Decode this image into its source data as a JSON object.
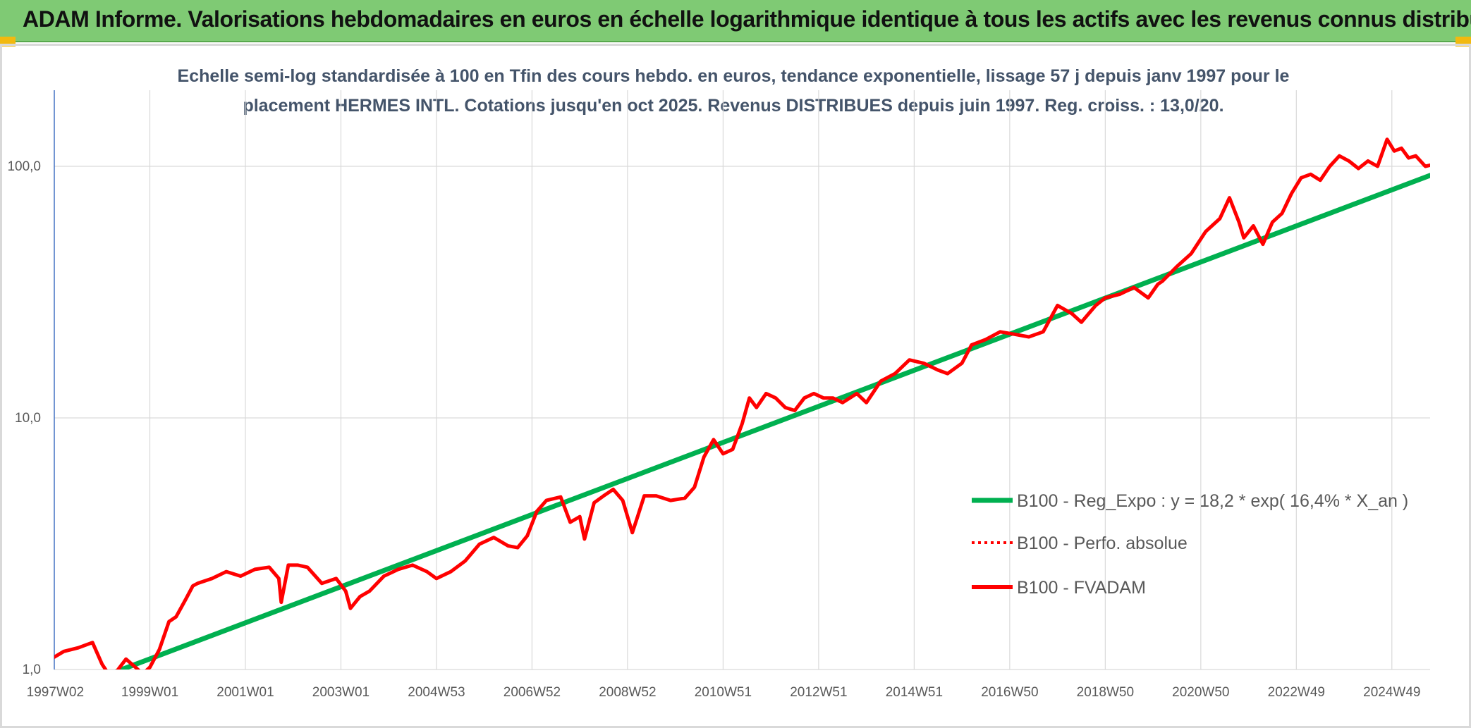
{
  "header": {
    "title": "ADAM Informe. Valorisations hebdomadaires en euros en échelle logarithmique identique à tous les actifs avec les revenus connus distribués"
  },
  "colors": {
    "header_bg": "#7fca74",
    "trend": "#00b050",
    "series": "#ff0000",
    "grid": "#d9d9d9",
    "subtitle": "#44546a"
  },
  "chart_data": {
    "type": "line",
    "title_lines": [
      "Echelle semi-log standardisée à 100 en Tfin des cours hebdo. en euros, tendance exponentielle, lissage 57 j depuis janv 1997 pour le",
      "placement HERMES INTL. Cotations jusqu'en oct 2025. Revenus DISTRIBUES depuis juin 1997. Reg. croiss. : 13,0/20."
    ],
    "y_scale": "log",
    "ylim": [
      1,
      190
    ],
    "xlim": [
      1997.0,
      2025.8
    ],
    "y_ticks": [
      {
        "value": 1,
        "label": "1,0"
      },
      {
        "value": 10,
        "label": "10,0"
      },
      {
        "value": 100,
        "label": "100,0"
      }
    ],
    "x_ticks": [
      {
        "value": 1997.02,
        "label": "1997W02"
      },
      {
        "value": 1999.0,
        "label": "1999W01"
      },
      {
        "value": 2001.0,
        "label": "2001W01"
      },
      {
        "value": 2003.0,
        "label": "2003W01"
      },
      {
        "value": 2005.0,
        "label": "2004W53"
      },
      {
        "value": 2007.0,
        "label": "2006W52"
      },
      {
        "value": 2009.0,
        "label": "2008W52"
      },
      {
        "value": 2011.0,
        "label": "2010W51"
      },
      {
        "value": 2013.0,
        "label": "2012W51"
      },
      {
        "value": 2015.0,
        "label": "2014W51"
      },
      {
        "value": 2017.0,
        "label": "2016W50"
      },
      {
        "value": 2019.0,
        "label": "2018W50"
      },
      {
        "value": 2021.0,
        "label": "2020W50"
      },
      {
        "value": 2023.0,
        "label": "2022W49"
      },
      {
        "value": 2025.0,
        "label": "2024W49"
      }
    ],
    "legend": {
      "position": "right",
      "entries": [
        {
          "label": "B100 - Reg_Expo : y = 18,2 * exp( 16,4% *  X_an )",
          "style": "solid-green"
        },
        {
          "label": "B100 - Perfo. absolue",
          "style": "dotted-red"
        },
        {
          "label": "B100 - FVADAM",
          "style": "solid-red"
        }
      ]
    },
    "series": [
      {
        "name": "B100 - Reg_Expo : y = 18,2 * exp( 16,4% *  X_an )",
        "kind": "trend",
        "x": [
          1998.1,
          2025.8
        ],
        "y": [
          0.95,
          92
        ]
      },
      {
        "name": "B100 - FVADAM",
        "kind": "main",
        "x": [
          1997.0,
          1997.2,
          1997.5,
          1997.8,
          1998.0,
          1998.15,
          1998.3,
          1998.5,
          1998.7,
          1998.85,
          1999.0,
          1999.2,
          1999.4,
          1999.55,
          1999.75,
          1999.9,
          2000.0,
          2000.3,
          2000.6,
          2000.9,
          2001.2,
          2001.5,
          2001.7,
          2001.75,
          2001.9,
          2002.1,
          2002.3,
          2002.6,
          2002.9,
          2003.1,
          2003.2,
          2003.4,
          2003.6,
          2003.9,
          2004.2,
          2004.5,
          2004.8,
          2005.0,
          2005.3,
          2005.6,
          2005.9,
          2006.2,
          2006.5,
          2006.7,
          2006.9,
          2007.1,
          2007.3,
          2007.6,
          2007.8,
          2008.0,
          2008.1,
          2008.3,
          2008.5,
          2008.7,
          2008.9,
          2009.1,
          2009.2,
          2009.35,
          2009.6,
          2009.9,
          2010.2,
          2010.4,
          2010.6,
          2010.8,
          2011.0,
          2011.2,
          2011.4,
          2011.55,
          2011.7,
          2011.9,
          2012.1,
          2012.3,
          2012.5,
          2012.7,
          2012.9,
          2013.1,
          2013.3,
          2013.5,
          2013.8,
          2014.0,
          2014.3,
          2014.6,
          2014.9,
          2015.2,
          2015.5,
          2015.7,
          2016.0,
          2016.2,
          2016.5,
          2016.8,
          2017.1,
          2017.4,
          2017.7,
          2018.0,
          2018.3,
          2018.5,
          2018.8,
          2019.0,
          2019.3,
          2019.6,
          2019.9,
          2020.1,
          2020.2,
          2020.5,
          2020.8,
          2021.1,
          2021.4,
          2021.6,
          2021.8,
          2021.9,
          2022.1,
          2022.3,
          2022.5,
          2022.7,
          2022.9,
          2023.1,
          2023.3,
          2023.5,
          2023.7,
          2023.9,
          2024.1,
          2024.3,
          2024.5,
          2024.7,
          2024.9,
          2025.05,
          2025.2,
          2025.35,
          2025.5,
          2025.7,
          2025.8
        ],
        "y": [
          1.12,
          1.18,
          1.22,
          1.28,
          1.05,
          0.95,
          0.98,
          1.1,
          1.02,
          0.96,
          1.02,
          1.2,
          1.55,
          1.62,
          1.9,
          2.15,
          2.2,
          2.3,
          2.45,
          2.35,
          2.5,
          2.55,
          2.3,
          1.85,
          2.6,
          2.6,
          2.55,
          2.2,
          2.3,
          2.05,
          1.75,
          1.95,
          2.05,
          2.35,
          2.5,
          2.6,
          2.45,
          2.3,
          2.45,
          2.7,
          3.15,
          3.35,
          3.1,
          3.05,
          3.4,
          4.25,
          4.7,
          4.85,
          3.85,
          4.05,
          3.3,
          4.6,
          4.9,
          5.2,
          4.7,
          3.5,
          4.0,
          4.9,
          4.9,
          4.7,
          4.8,
          5.3,
          7.0,
          8.2,
          7.2,
          7.5,
          9.5,
          12.0,
          11.0,
          12.5,
          12.0,
          11.0,
          10.7,
          12.0,
          12.5,
          12.0,
          12.0,
          11.5,
          12.5,
          11.5,
          14.0,
          15.0,
          17.0,
          16.5,
          15.5,
          15.0,
          16.5,
          19.5,
          20.5,
          22.0,
          21.5,
          21.0,
          22.0,
          28.0,
          26.0,
          24.0,
          28.0,
          30.0,
          31.0,
          33.0,
          30.0,
          34.0,
          35.0,
          40.0,
          45.0,
          55.0,
          62.0,
          75.0,
          60.0,
          52.0,
          58.0,
          49.0,
          60.0,
          65.0,
          78.0,
          90.0,
          93.0,
          88.0,
          100.0,
          110.0,
          105.0,
          98.0,
          105.0,
          100.0,
          128.0,
          115.0,
          118.0,
          108.0,
          110.0,
          100.0,
          101.0
        ]
      }
    ]
  }
}
